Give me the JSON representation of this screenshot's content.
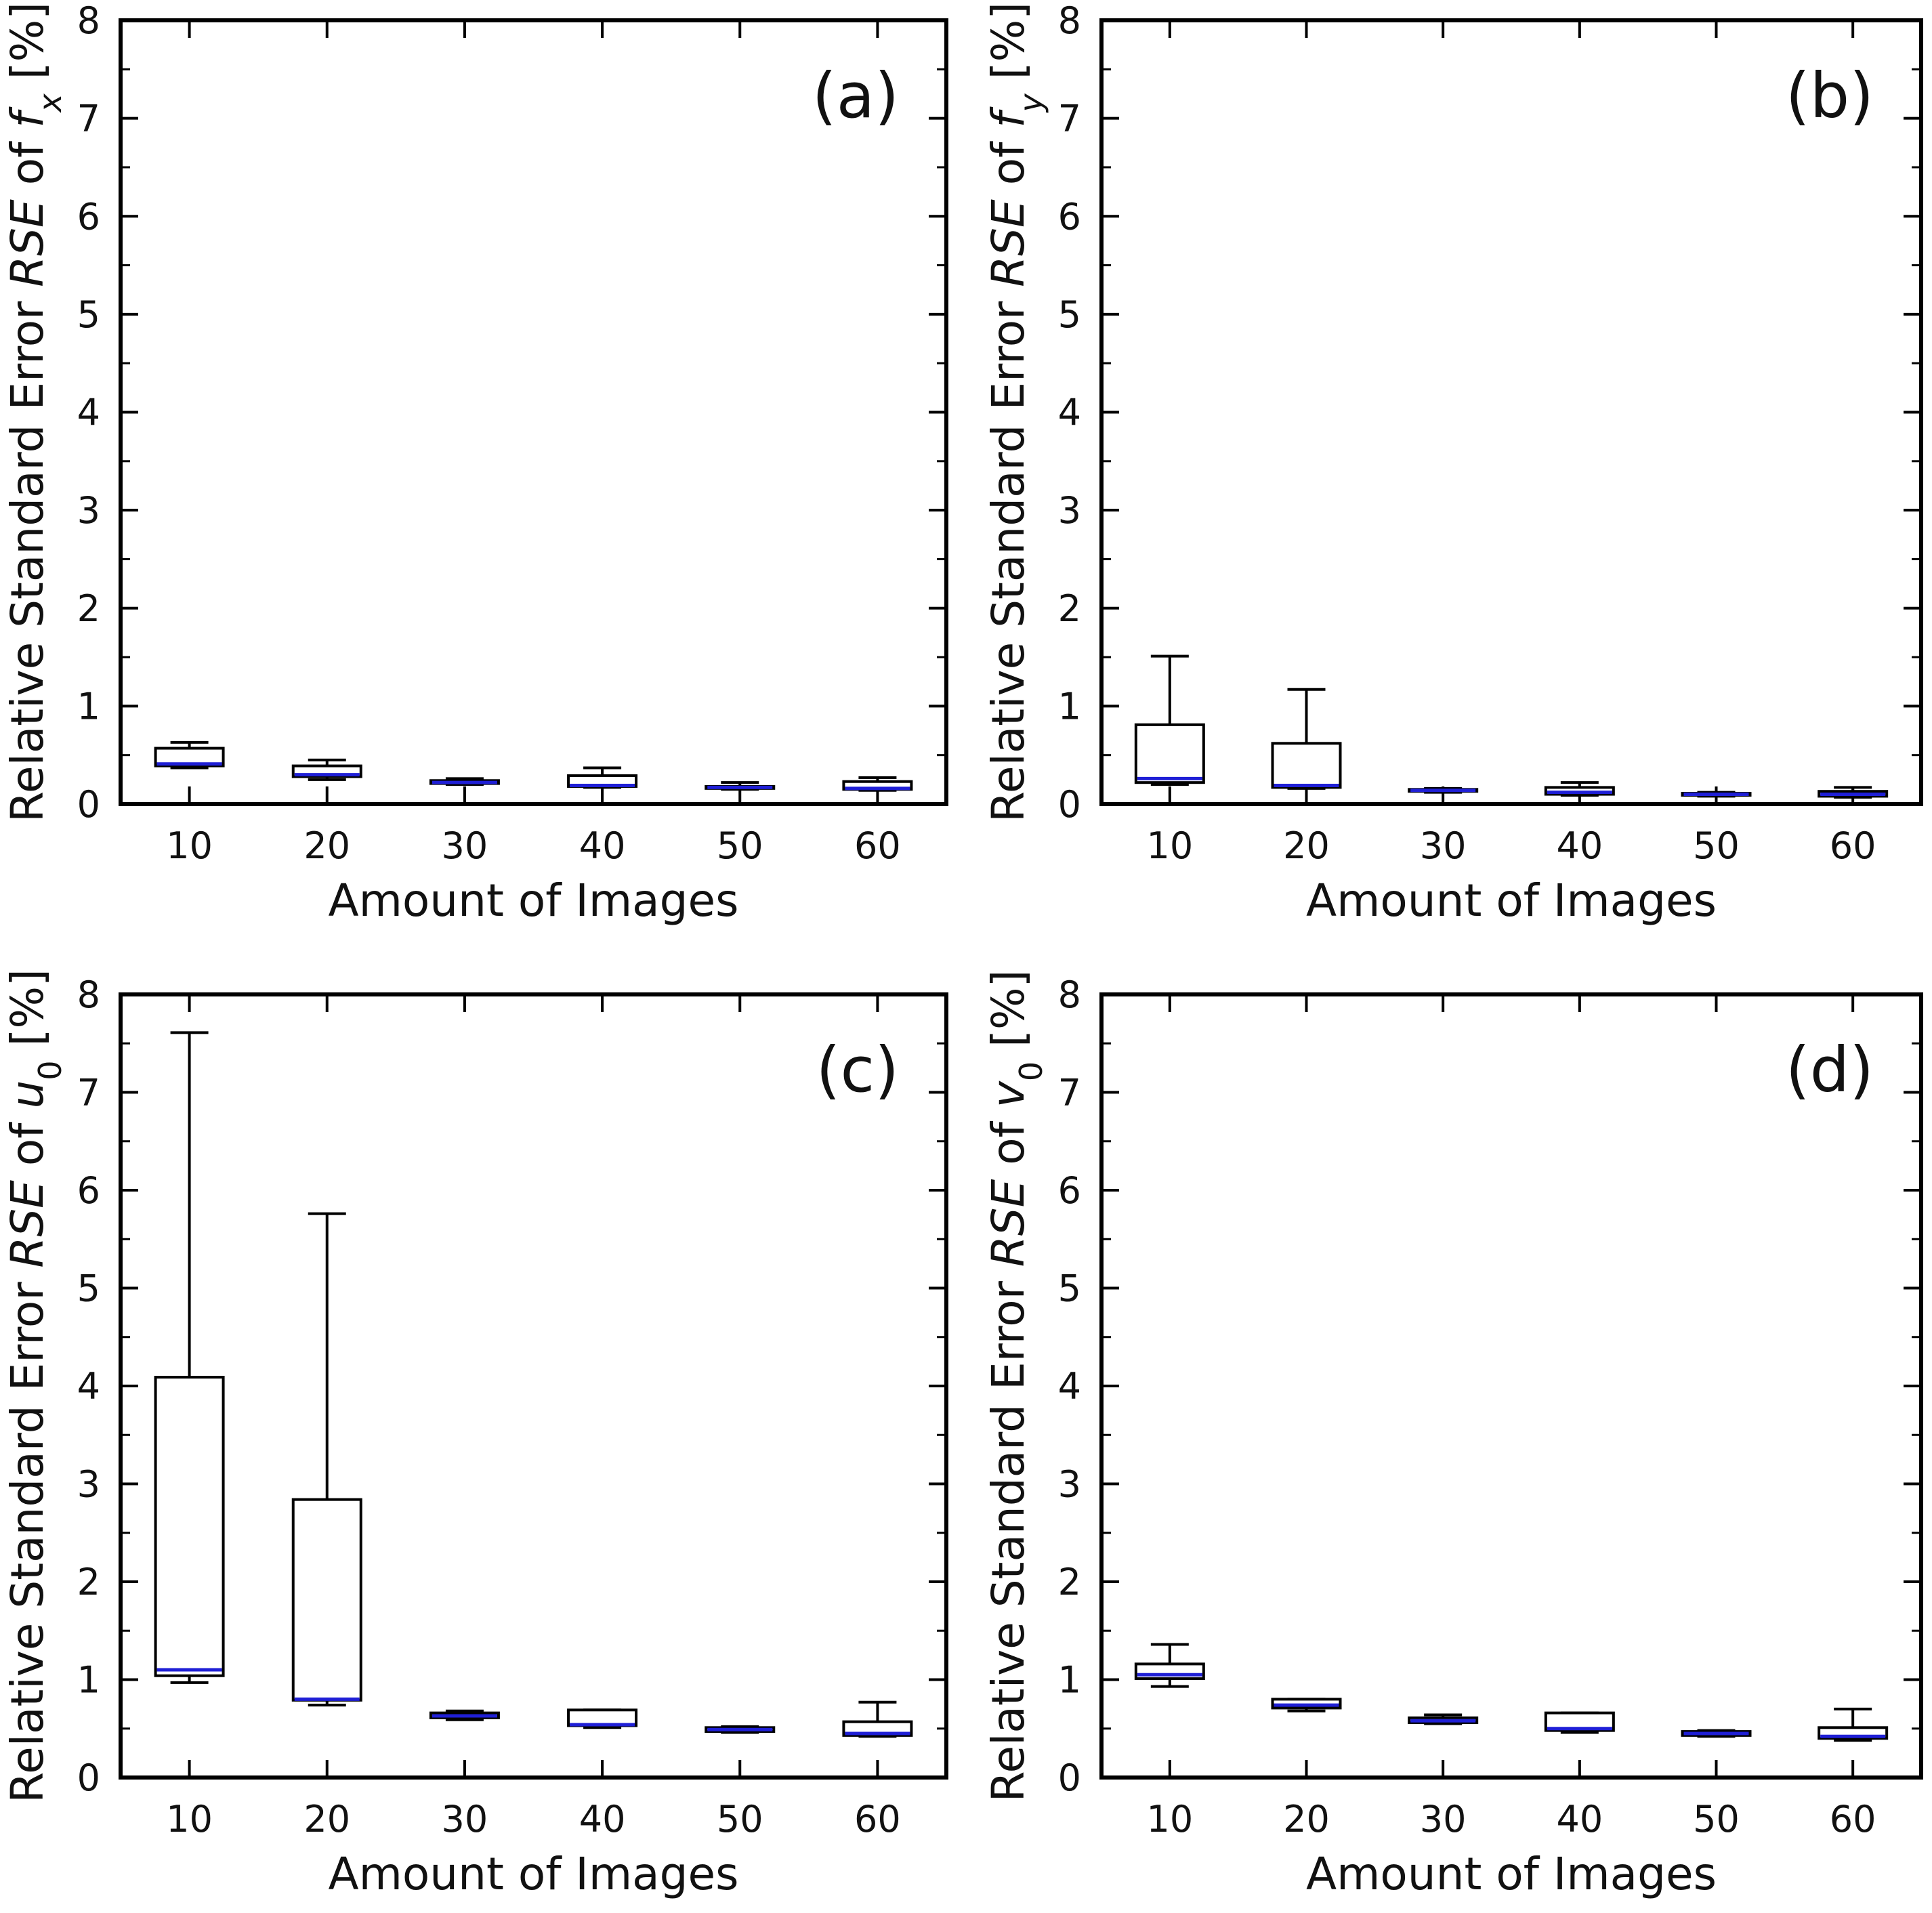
{
  "figure_style": {
    "frame_color": "#000000",
    "median_color": "#1f1fd6"
  },
  "chart_data": [
    {
      "type": "box",
      "panel_label": "(a)",
      "title": "",
      "xlabel": "Amount of Images",
      "ylabel": {
        "prefix": "Relative Standard Error ",
        "italic": "RSE",
        "middle": " of ",
        "symbol": "f",
        "subscript": "x",
        "suffix": " [%]"
      },
      "categories": [
        "10",
        "20",
        "30",
        "40",
        "50",
        "60"
      ],
      "ylim": [
        0,
        8
      ],
      "yticks": [
        "0",
        "1",
        "2",
        "3",
        "4",
        "5",
        "6",
        "7",
        "8"
      ],
      "boxes": [
        {
          "whisker_low": 0.37,
          "q1": 0.39,
          "median": 0.41,
          "q3": 0.57,
          "whisker_high": 0.63
        },
        {
          "whisker_low": 0.25,
          "q1": 0.28,
          "median": 0.3,
          "q3": 0.39,
          "whisker_high": 0.45
        },
        {
          "whisker_low": 0.2,
          "q1": 0.21,
          "median": 0.22,
          "q3": 0.24,
          "whisker_high": 0.26
        },
        {
          "whisker_low": 0.17,
          "q1": 0.18,
          "median": 0.19,
          "q3": 0.29,
          "whisker_high": 0.37
        },
        {
          "whisker_low": 0.15,
          "q1": 0.16,
          "median": 0.17,
          "q3": 0.18,
          "whisker_high": 0.22
        },
        {
          "whisker_low": 0.14,
          "q1": 0.15,
          "median": 0.16,
          "q3": 0.23,
          "whisker_high": 0.27
        }
      ]
    },
    {
      "type": "box",
      "panel_label": "(b)",
      "title": "",
      "xlabel": "Amount of Images",
      "ylabel": {
        "prefix": "Relative Standard Error ",
        "italic": "RSE",
        "middle": " of ",
        "symbol": "f",
        "subscript": "y",
        "suffix": " [%]"
      },
      "categories": [
        "10",
        "20",
        "30",
        "40",
        "50",
        "60"
      ],
      "ylim": [
        0,
        8
      ],
      "yticks": [
        "0",
        "1",
        "2",
        "3",
        "4",
        "5",
        "6",
        "7",
        "8"
      ],
      "boxes": [
        {
          "whisker_low": 0.2,
          "q1": 0.22,
          "median": 0.26,
          "q3": 0.81,
          "whisker_high": 1.51
        },
        {
          "whisker_low": 0.16,
          "q1": 0.17,
          "median": 0.19,
          "q3": 0.62,
          "whisker_high": 1.17
        },
        {
          "whisker_low": 0.12,
          "q1": 0.13,
          "median": 0.14,
          "q3": 0.15,
          "whisker_high": 0.16
        },
        {
          "whisker_low": 0.09,
          "q1": 0.1,
          "median": 0.12,
          "q3": 0.17,
          "whisker_high": 0.22
        },
        {
          "whisker_low": 0.08,
          "q1": 0.09,
          "median": 0.1,
          "q3": 0.11,
          "whisker_high": 0.12
        },
        {
          "whisker_low": 0.07,
          "q1": 0.08,
          "median": 0.1,
          "q3": 0.13,
          "whisker_high": 0.17
        }
      ]
    },
    {
      "type": "box",
      "panel_label": "(c)",
      "title": "",
      "xlabel": "Amount of Images",
      "ylabel": {
        "prefix": "Relative Standard Error ",
        "italic": "RSE",
        "middle": " of ",
        "symbol": "u",
        "subscript": "0",
        "suffix": " [%]"
      },
      "categories": [
        "10",
        "20",
        "30",
        "40",
        "50",
        "60"
      ],
      "ylim": [
        0,
        8
      ],
      "yticks": [
        "0",
        "1",
        "2",
        "3",
        "4",
        "5",
        "6",
        "7",
        "8"
      ],
      "boxes": [
        {
          "whisker_low": 0.97,
          "q1": 1.04,
          "median": 1.1,
          "q3": 4.09,
          "whisker_high": 7.61
        },
        {
          "whisker_low": 0.74,
          "q1": 0.79,
          "median": 0.8,
          "q3": 2.84,
          "whisker_high": 5.76
        },
        {
          "whisker_low": 0.59,
          "q1": 0.61,
          "median": 0.63,
          "q3": 0.66,
          "whisker_high": 0.68
        },
        {
          "whisker_low": 0.51,
          "q1": 0.53,
          "median": 0.54,
          "q3": 0.69,
          "whisker_high": 0.69
        },
        {
          "whisker_low": 0.46,
          "q1": 0.47,
          "median": 0.49,
          "q3": 0.51,
          "whisker_high": 0.52
        },
        {
          "whisker_low": 0.42,
          "q1": 0.43,
          "median": 0.45,
          "q3": 0.57,
          "whisker_high": 0.77
        }
      ]
    },
    {
      "type": "box",
      "panel_label": "(d)",
      "title": "",
      "xlabel": "Amount of Images",
      "ylabel": {
        "prefix": "Relative Standard Error ",
        "italic": "RSE",
        "middle": " of ",
        "symbol": "v",
        "subscript": "0",
        "suffix": " [%]"
      },
      "categories": [
        "10",
        "20",
        "30",
        "40",
        "50",
        "60"
      ],
      "ylim": [
        0,
        8
      ],
      "yticks": [
        "0",
        "1",
        "2",
        "3",
        "4",
        "5",
        "6",
        "7",
        "8"
      ],
      "boxes": [
        {
          "whisker_low": 0.93,
          "q1": 1.01,
          "median": 1.05,
          "q3": 1.16,
          "whisker_high": 1.36
        },
        {
          "whisker_low": 0.68,
          "q1": 0.71,
          "median": 0.74,
          "q3": 0.8,
          "whisker_high": 0.8
        },
        {
          "whisker_low": 0.55,
          "q1": 0.56,
          "median": 0.58,
          "q3": 0.61,
          "whisker_high": 0.64
        },
        {
          "whisker_low": 0.46,
          "q1": 0.48,
          "median": 0.5,
          "q3": 0.66,
          "whisker_high": 0.66
        },
        {
          "whisker_low": 0.42,
          "q1": 0.43,
          "median": 0.45,
          "q3": 0.47,
          "whisker_high": 0.48
        },
        {
          "whisker_low": 0.38,
          "q1": 0.4,
          "median": 0.42,
          "q3": 0.51,
          "whisker_high": 0.7
        }
      ]
    }
  ]
}
